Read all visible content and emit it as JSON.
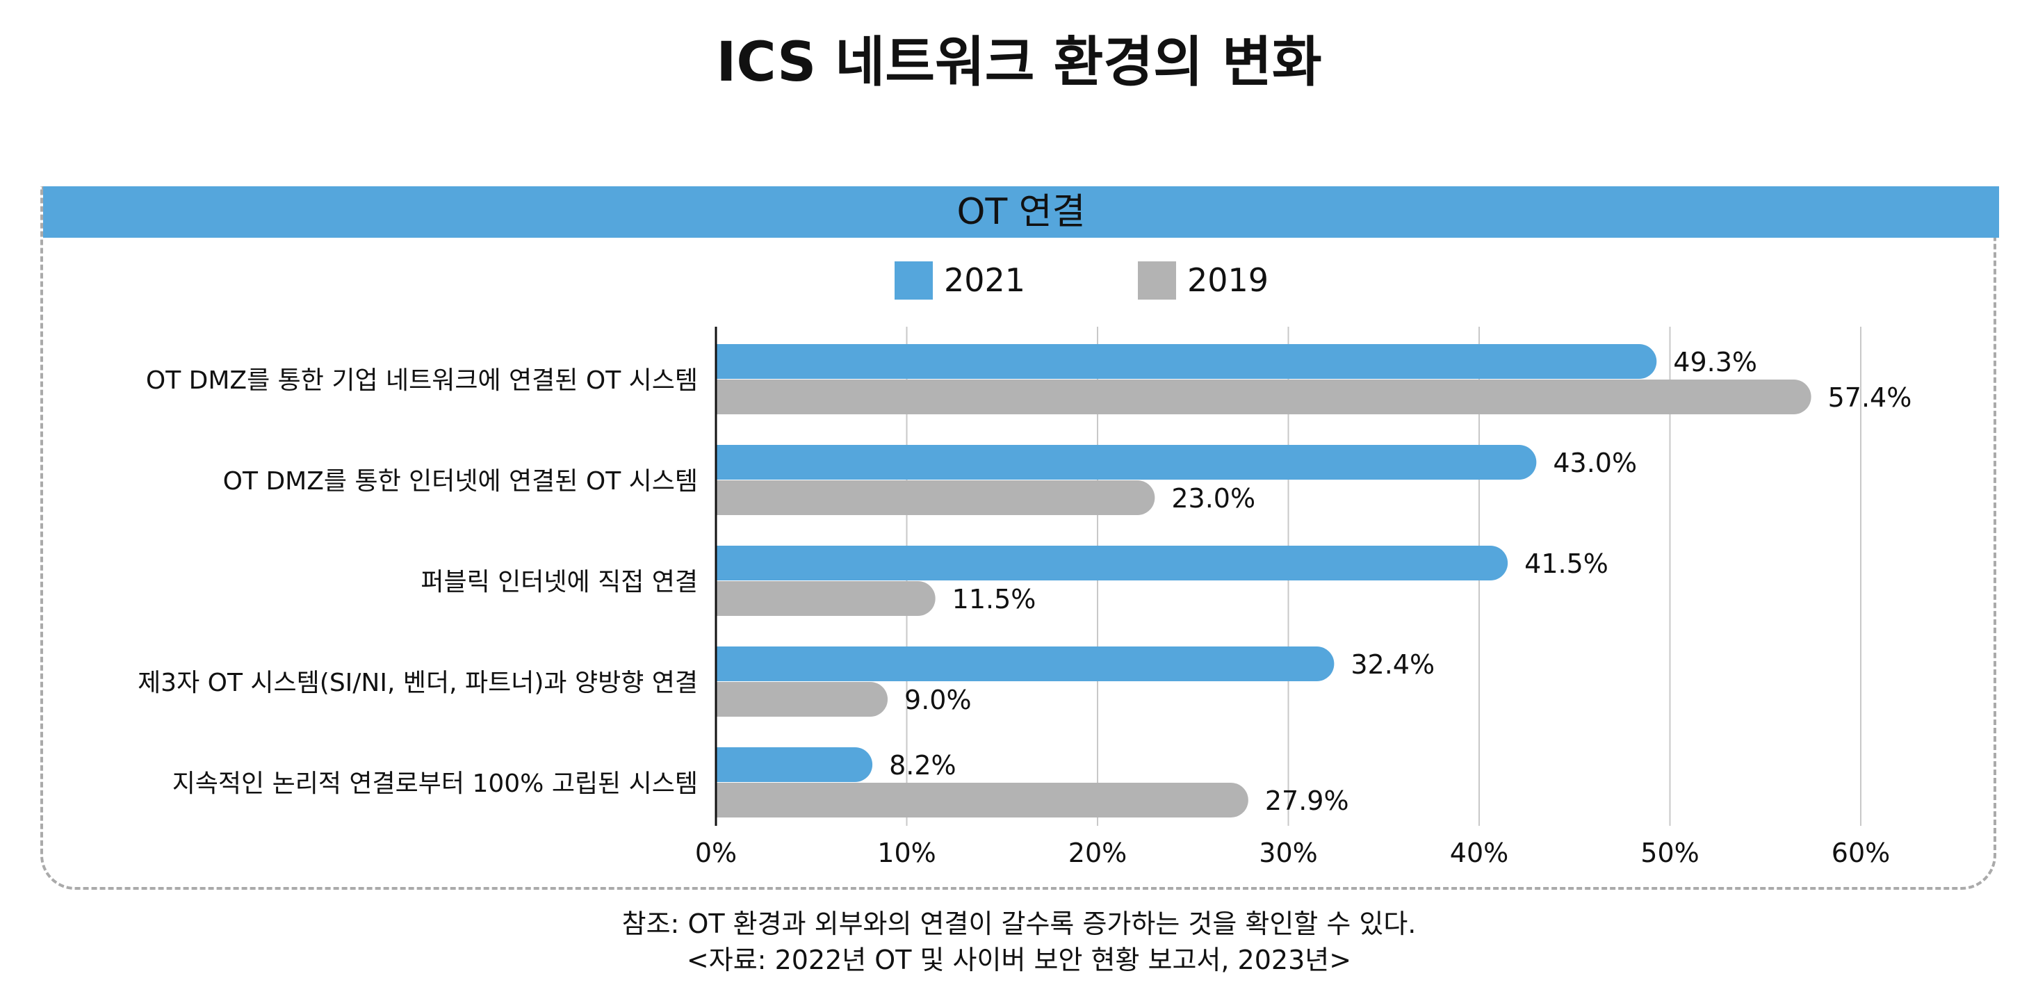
{
  "title": "ICS 네트워크 환경의 변화",
  "panel_header": "OT 연결",
  "legend": [
    {
      "label": "2021",
      "color": "#55a6dc"
    },
    {
      "label": "2019",
      "color": "#b3b3b3"
    }
  ],
  "footnotes": {
    "note": "참조: OT 환경과 외부와의 연결이 갈수록 증가하는 것을 확인할 수 있다.",
    "source": "<자료: 2022년 OT 및 사이버 보안 현황 보고서, 2023년>"
  },
  "chart_data": {
    "type": "bar",
    "orientation": "horizontal",
    "title": "OT 연결",
    "categories": [
      "OT DMZ를 통한 기업 네트워크에 연결된 OT 시스템",
      "OT DMZ를 통한 인터넷에 연결된 OT 시스템",
      "퍼블릭 인터넷에 직접 연결",
      "제3자 OT 시스템(SI/NI, 벤더, 파트너)과 양방향 연결",
      "지속적인 논리적 연결로부터 100% 고립된 시스템"
    ],
    "series": [
      {
        "name": "2021",
        "color": "#55a6dc",
        "values": [
          49.3,
          43.0,
          41.5,
          32.4,
          8.2
        ],
        "labels": [
          "49.3%",
          "43.0%",
          "41.5%",
          "32.4%",
          "8.2%"
        ]
      },
      {
        "name": "2019",
        "color": "#b3b3b3",
        "values": [
          57.4,
          23.0,
          11.5,
          9.0,
          27.9
        ],
        "labels": [
          "57.4%",
          "23.0%",
          "11.5%",
          "9.0%",
          "27.9%"
        ]
      }
    ],
    "xlim": [
      0,
      60
    ],
    "xticks": [
      0,
      10,
      20,
      30,
      40,
      50,
      60
    ],
    "xtick_labels": [
      "0%",
      "10%",
      "20%",
      "30%",
      "40%",
      "50%",
      "60%"
    ],
    "grid": true,
    "legend_position": "top"
  }
}
